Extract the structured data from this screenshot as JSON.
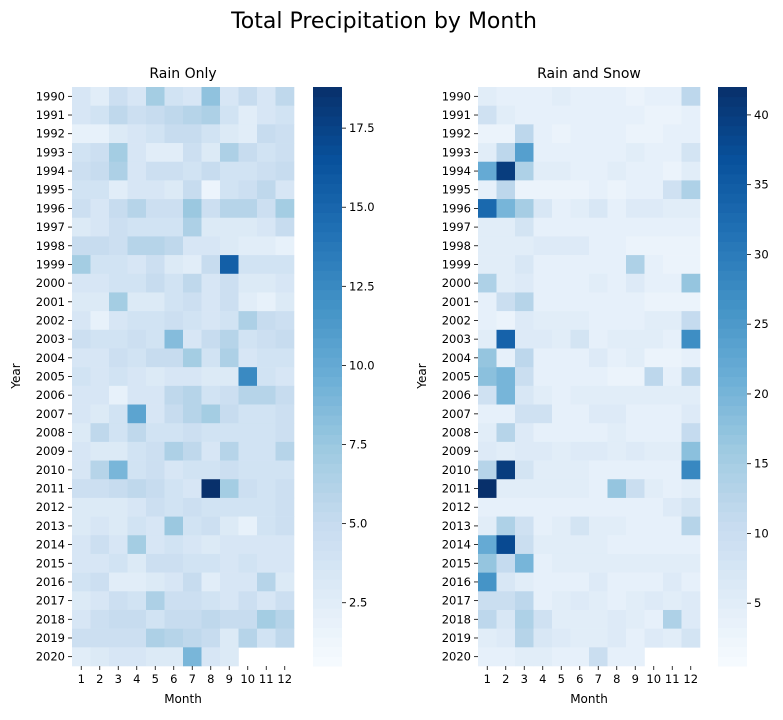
{
  "title": "Total Precipitation by Month",
  "chart_data": [
    {
      "type": "heatmap",
      "title": "Rain Only",
      "xlabel": "Month",
      "ylabel": "Year",
      "x": [
        "1",
        "2",
        "3",
        "4",
        "5",
        "6",
        "7",
        "8",
        "9",
        "10",
        "11",
        "12"
      ],
      "y": [
        "1990",
        "1991",
        "1992",
        "1993",
        "1994",
        "1995",
        "1996",
        "1997",
        "1998",
        "1999",
        "2000",
        "2001",
        "2002",
        "2003",
        "2004",
        "2005",
        "2006",
        "2007",
        "2008",
        "2009",
        "2010",
        "2011",
        "2012",
        "2013",
        "2014",
        "2015",
        "2016",
        "2017",
        "2018",
        "2019",
        "2020"
      ],
      "colorbar": {
        "vmin": 0.5,
        "vmax": 18.8,
        "ticks": [
          "2.5",
          "5.0",
          "7.5",
          "10.0",
          "12.5",
          "15.0",
          "17.5"
        ],
        "colormap": "Blues"
      },
      "values": [
        [
          3.5,
          2.5,
          4.5,
          3.5,
          7.0,
          4.0,
          3.5,
          8.0,
          3.5,
          5.0,
          3.5,
          5.5
        ],
        [
          3.5,
          4.0,
          5.5,
          4.5,
          5.0,
          5.5,
          6.0,
          6.5,
          4.0,
          2.5,
          3.5,
          4.0
        ],
        [
          2.0,
          2.0,
          3.0,
          3.5,
          4.0,
          5.0,
          5.0,
          4.0,
          3.0,
          2.5,
          5.0,
          4.5
        ],
        [
          4.0,
          4.5,
          7.0,
          3.5,
          2.5,
          2.5,
          4.5,
          3.0,
          6.5,
          5.0,
          4.0,
          4.5
        ],
        [
          4.5,
          5.0,
          6.5,
          3.5,
          4.5,
          4.5,
          4.0,
          5.0,
          4.0,
          4.0,
          4.5,
          5.0
        ],
        [
          4.0,
          4.0,
          2.5,
          3.5,
          3.5,
          3.0,
          5.0,
          1.5,
          4.0,
          4.5,
          5.5,
          3.5
        ],
        [
          4.5,
          3.5,
          5.0,
          6.0,
          4.5,
          4.5,
          7.5,
          4.5,
          6.0,
          6.0,
          4.5,
          7.0
        ],
        [
          3.0,
          3.5,
          4.5,
          4.0,
          4.0,
          4.0,
          6.5,
          3.0,
          3.0,
          3.0,
          3.5,
          5.0
        ],
        [
          5.0,
          5.0,
          4.5,
          6.0,
          6.0,
          5.5,
          3.5,
          3.5,
          3.0,
          2.5,
          2.5,
          2.0
        ],
        [
          7.0,
          4.0,
          4.0,
          3.5,
          4.5,
          3.0,
          2.5,
          5.0,
          15.5,
          4.0,
          4.0,
          4.0
        ],
        [
          3.5,
          3.5,
          4.0,
          4.0,
          5.0,
          4.0,
          5.5,
          3.5,
          4.5,
          3.0,
          3.0,
          3.5
        ],
        [
          3.0,
          3.0,
          7.0,
          3.0,
          3.0,
          4.0,
          4.5,
          3.5,
          4.5,
          2.5,
          2.0,
          3.0
        ],
        [
          3.5,
          2.0,
          3.5,
          4.0,
          4.0,
          4.5,
          4.0,
          3.5,
          4.0,
          6.5,
          5.0,
          4.5
        ],
        [
          4.5,
          4.0,
          4.0,
          4.5,
          4.0,
          8.5,
          3.5,
          5.0,
          6.0,
          4.0,
          4.5,
          5.0
        ],
        [
          3.5,
          3.5,
          4.5,
          4.0,
          5.0,
          5.0,
          7.0,
          4.0,
          6.5,
          3.5,
          4.0,
          4.0
        ],
        [
          4.0,
          3.5,
          4.0,
          3.5,
          3.0,
          3.5,
          3.5,
          3.0,
          3.0,
          12.5,
          4.0,
          3.5
        ],
        [
          3.5,
          3.5,
          2.0,
          3.5,
          3.5,
          5.5,
          6.0,
          4.0,
          4.5,
          6.0,
          6.0,
          5.0
        ],
        [
          3.5,
          3.0,
          4.0,
          10.5,
          3.5,
          5.0,
          6.0,
          7.0,
          5.0,
          4.0,
          4.0,
          4.5
        ],
        [
          3.0,
          5.5,
          4.0,
          5.5,
          4.0,
          4.0,
          4.5,
          4.0,
          4.0,
          4.0,
          4.0,
          4.5
        ],
        [
          3.5,
          3.0,
          3.0,
          4.0,
          4.5,
          6.5,
          5.5,
          3.5,
          6.0,
          4.0,
          4.0,
          6.0
        ],
        [
          3.5,
          6.0,
          9.0,
          4.0,
          4.5,
          3.5,
          4.0,
          4.0,
          4.5,
          4.0,
          4.0,
          4.0
        ],
        [
          4.5,
          4.5,
          5.0,
          5.5,
          5.0,
          4.0,
          3.5,
          18.8,
          7.0,
          4.5,
          4.0,
          4.5
        ],
        [
          3.0,
          3.0,
          3.0,
          3.5,
          4.5,
          4.0,
          4.5,
          4.0,
          4.0,
          4.0,
          4.0,
          4.5
        ],
        [
          3.0,
          3.5,
          3.0,
          4.0,
          3.5,
          7.5,
          4.0,
          4.5,
          3.0,
          2.0,
          4.0,
          4.5
        ],
        [
          3.5,
          4.5,
          3.5,
          7.0,
          3.5,
          4.0,
          3.5,
          3.0,
          3.5,
          3.5,
          3.5,
          3.5
        ],
        [
          3.5,
          3.5,
          4.0,
          3.0,
          4.5,
          4.5,
          4.0,
          4.0,
          3.5,
          4.0,
          3.5,
          3.5
        ],
        [
          4.0,
          4.5,
          2.5,
          2.5,
          3.0,
          3.5,
          5.0,
          2.5,
          3.5,
          3.5,
          6.0,
          3.0
        ],
        [
          3.0,
          3.5,
          4.5,
          4.0,
          6.5,
          4.5,
          4.5,
          4.0,
          3.5,
          4.5,
          3.5,
          4.5
        ],
        [
          3.5,
          4.5,
          5.0,
          5.0,
          4.0,
          5.0,
          5.0,
          5.5,
          5.0,
          5.0,
          7.0,
          6.0
        ],
        [
          4.5,
          4.5,
          4.5,
          4.5,
          6.5,
          6.0,
          5.5,
          5.0,
          3.0,
          6.0,
          4.0,
          5.5
        ],
        [
          2.5,
          3.0,
          3.5,
          3.5,
          3.0,
          3.0,
          9.0,
          3.5,
          3.0,
          null,
          null,
          null
        ]
      ]
    },
    {
      "type": "heatmap",
      "title": "Rain and Snow",
      "xlabel": "Month",
      "ylabel": "Year",
      "x": [
        "1",
        "2",
        "3",
        "4",
        "5",
        "6",
        "7",
        "8",
        "9",
        "10",
        "11",
        "12"
      ],
      "y": [
        "1990",
        "1991",
        "1992",
        "1993",
        "1994",
        "1995",
        "1996",
        "1997",
        "1998",
        "1999",
        "2000",
        "2001",
        "2002",
        "2003",
        "2004",
        "2005",
        "2006",
        "2007",
        "2008",
        "2009",
        "2010",
        "2011",
        "2012",
        "2013",
        "2014",
        "2015",
        "2016",
        "2017",
        "2018",
        "2019",
        "2020"
      ],
      "colorbar": {
        "vmin": 0.5,
        "vmax": 42,
        "ticks": [
          "5",
          "10",
          "15",
          "20",
          "25",
          "30",
          "35",
          "40"
        ],
        "colormap": "Blues"
      },
      "values": [
        [
          5,
          4,
          4,
          4,
          5,
          4,
          4,
          4,
          3,
          4,
          4,
          12
        ],
        [
          9,
          5,
          4,
          4,
          4,
          4,
          4,
          4,
          4,
          3,
          3,
          4
        ],
        [
          3,
          3,
          12,
          4,
          3,
          4,
          4,
          4,
          3,
          3,
          4,
          4
        ],
        [
          5,
          12,
          24,
          4,
          4,
          4,
          4,
          4,
          5,
          4,
          4,
          8
        ],
        [
          22,
          40,
          14,
          5,
          5,
          4,
          4,
          5,
          4,
          4,
          3,
          5
        ],
        [
          4,
          12,
          3,
          3,
          3,
          3,
          4,
          3,
          4,
          4,
          9,
          14
        ],
        [
          33,
          20,
          15,
          7,
          4,
          5,
          7,
          4,
          6,
          6,
          5,
          5
        ],
        [
          5,
          5,
          8,
          4,
          4,
          4,
          4,
          4,
          4,
          4,
          4,
          4
        ],
        [
          5,
          5,
          5,
          6,
          6,
          6,
          4,
          4,
          3,
          3,
          3,
          3
        ],
        [
          5,
          5,
          7,
          4,
          4,
          4,
          4,
          4,
          14,
          4,
          3,
          3
        ],
        [
          14,
          5,
          6,
          4,
          4,
          4,
          5,
          4,
          6,
          4,
          4,
          17
        ],
        [
          4,
          10,
          13,
          4,
          4,
          4,
          4,
          4,
          4,
          3,
          3,
          3
        ],
        [
          4,
          3,
          6,
          5,
          5,
          5,
          4,
          4,
          4,
          5,
          5,
          11
        ],
        [
          5,
          34,
          6,
          6,
          5,
          8,
          4,
          5,
          5,
          5,
          4,
          27
        ],
        [
          17,
          4,
          12,
          4,
          4,
          4,
          6,
          4,
          5,
          3,
          3,
          4
        ],
        [
          18,
          20,
          10,
          4,
          4,
          4,
          4,
          3,
          3,
          12,
          4,
          12
        ],
        [
          9,
          20,
          7,
          5,
          4,
          5,
          5,
          5,
          5,
          5,
          5,
          5
        ],
        [
          4,
          4,
          9,
          9,
          4,
          4,
          6,
          6,
          4,
          4,
          4,
          6
        ],
        [
          5,
          13,
          6,
          4,
          4,
          4,
          4,
          5,
          4,
          4,
          4,
          11
        ],
        [
          6,
          5,
          6,
          6,
          5,
          6,
          6,
          5,
          6,
          5,
          5,
          18
        ],
        [
          13,
          40,
          8,
          5,
          5,
          5,
          4,
          4,
          4,
          4,
          4,
          28
        ],
        [
          42,
          5,
          5,
          5,
          5,
          5,
          4,
          17,
          10,
          5,
          4,
          5
        ],
        [
          4,
          4,
          4,
          4,
          4,
          4,
          4,
          4,
          4,
          4,
          6,
          8
        ],
        [
          5,
          14,
          9,
          4,
          5,
          8,
          5,
          5,
          4,
          4,
          4,
          13
        ],
        [
          22,
          38,
          10,
          5,
          5,
          5,
          5,
          4,
          4,
          4,
          4,
          4
        ],
        [
          17,
          11,
          20,
          4,
          5,
          5,
          5,
          5,
          5,
          5,
          5,
          5
        ],
        [
          26,
          7,
          5,
          4,
          4,
          4,
          6,
          4,
          4,
          4,
          6,
          4
        ],
        [
          10,
          10,
          12,
          4,
          5,
          6,
          5,
          4,
          5,
          6,
          5,
          6
        ],
        [
          12,
          7,
          14,
          9,
          5,
          5,
          5,
          6,
          5,
          4,
          14,
          6
        ],
        [
          5,
          6,
          13,
          7,
          6,
          5,
          5,
          6,
          4,
          6,
          5,
          8
        ],
        [
          4,
          4,
          5,
          5,
          4,
          4,
          10,
          4,
          4,
          null,
          null,
          null
        ]
      ]
    }
  ]
}
